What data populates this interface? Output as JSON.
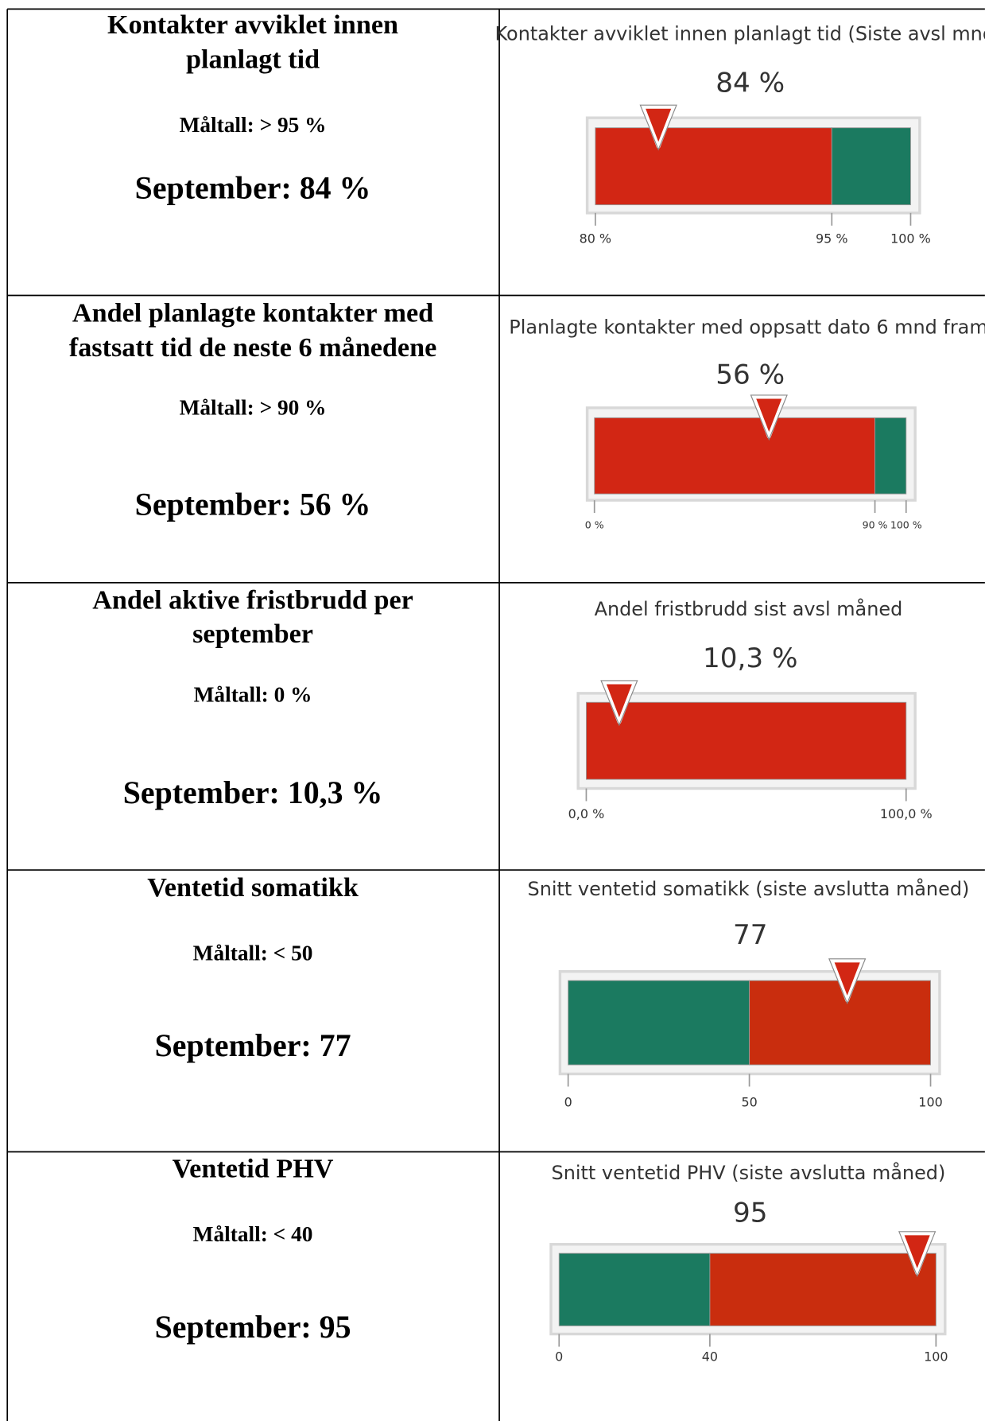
{
  "rows": [
    {
      "title": [
        "Kontakter avviklet innen",
        "planlagt tid"
      ],
      "target": "Måltall: > 95 %",
      "result": "September: 84 %",
      "gauge": {
        "title": "Kontakter avviklet innen planlagt tid (Siste avsl mnd)",
        "value": 84,
        "value_label": "84 %",
        "xlim": [
          80,
          100
        ],
        "bands": [
          {
            "to": 95,
            "color": "#d22614"
          },
          {
            "to": 100,
            "color": "#1b7a60"
          }
        ],
        "ticks": [
          {
            "value": 80,
            "label": "80 %"
          },
          {
            "value": 95,
            "label": "95 %"
          },
          {
            "value": 100,
            "label": "100 %"
          }
        ]
      }
    },
    {
      "title": [
        "Andel planlagte kontakter med",
        "fastsatt tid de neste 6 månedene"
      ],
      "target": "Måltall: > 90 %",
      "result": "September: 56 %",
      "gauge": {
        "title": "Planlagte kontakter med oppsatt dato 6 mnd fram",
        "value": 56,
        "value_label": "56 %",
        "xlim": [
          0,
          100
        ],
        "bands": [
          {
            "to": 90,
            "color": "#d22614"
          },
          {
            "to": 100,
            "color": "#1b7a60"
          }
        ],
        "ticks": [
          {
            "value": 0,
            "label": "0 %"
          },
          {
            "value": 90,
            "label": "90 %"
          },
          {
            "value": 100,
            "label": "100 %"
          }
        ]
      }
    },
    {
      "title": [
        "Andel aktive fristbrudd per",
        "september"
      ],
      "target": "Måltall: 0 %",
      "result": "September: 10,3 %",
      "gauge": {
        "title": "Andel fristbrudd sist avsl måned",
        "value": 10.3,
        "value_label": "10,3 %",
        "xlim": [
          0,
          100
        ],
        "bands": [
          {
            "to": 100,
            "color": "#d22614"
          }
        ],
        "ticks": [
          {
            "value": 0,
            "label": "0,0 %"
          },
          {
            "value": 100,
            "label": "100,0 %"
          }
        ]
      }
    },
    {
      "title": [
        "Ventetid somatikk"
      ],
      "target": "Måltall: < 50",
      "result": "September: 77",
      "gauge": {
        "title": "Snitt ventetid somatikk (siste avslutta måned)",
        "value": 77,
        "xlim": [
          0,
          100
        ],
        "bands": [
          {
            "to": 50,
            "color": "#1b7a60"
          },
          {
            "to": 100,
            "color": "#c92d0e"
          }
        ],
        "ticks": [
          0,
          50,
          100
        ]
      }
    },
    {
      "title": [
        "Ventetid PHV"
      ],
      "target": "Måltall: < 40",
      "result": "September: 95",
      "gauge": {
        "title": "Snitt ventetid PHV (siste avslutta måned)",
        "value": 95,
        "xlim": [
          0,
          100
        ],
        "bands": [
          {
            "to": 40,
            "color": "#1b7a60"
          },
          {
            "to": 100,
            "color": "#c92d0e"
          }
        ],
        "ticks": [
          0,
          40,
          100
        ]
      }
    }
  ]
}
